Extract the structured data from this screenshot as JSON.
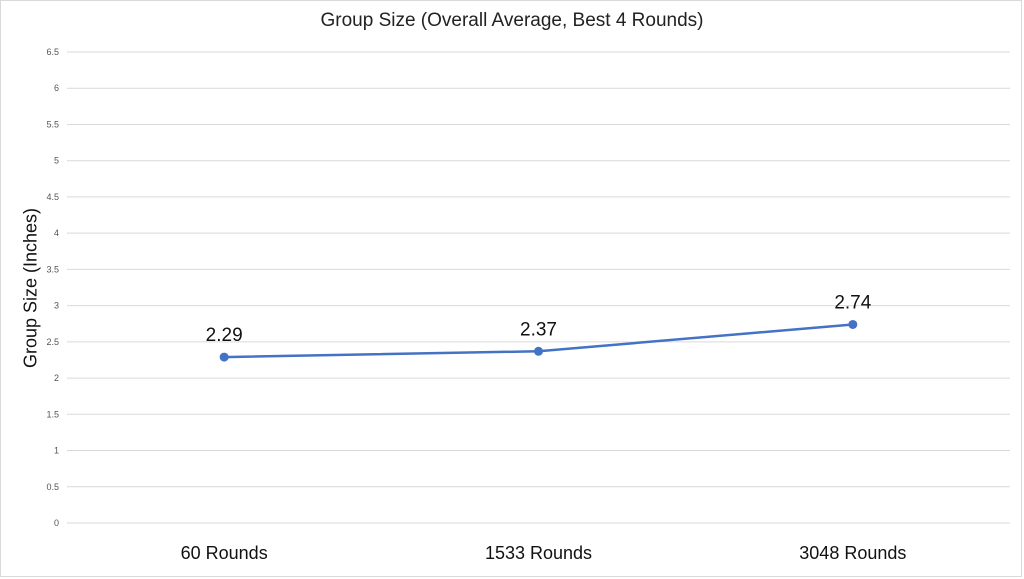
{
  "chart_data": {
    "type": "line",
    "title": "Group Size (Overall Average, Best 4 Rounds)",
    "xlabel": "",
    "ylabel": "Group Size (Inches)",
    "categories": [
      "60 Rounds",
      "1533 Rounds",
      "3048 Rounds"
    ],
    "series": [
      {
        "values": [
          2.29,
          2.37,
          2.74
        ],
        "data_labels": [
          "2.29",
          "2.37",
          "2.74"
        ]
      }
    ],
    "ylim": [
      0,
      6.5
    ],
    "yticks": [
      "0",
      "0.5",
      "1",
      "1.5",
      "2",
      "2.5",
      "3",
      "3.5",
      "4",
      "4.5",
      "5",
      "5.5",
      "6",
      "6.5"
    ],
    "grid": true,
    "legend": "none",
    "colors": {
      "series": "#4472c4",
      "grid": "#d9d9d9"
    }
  }
}
